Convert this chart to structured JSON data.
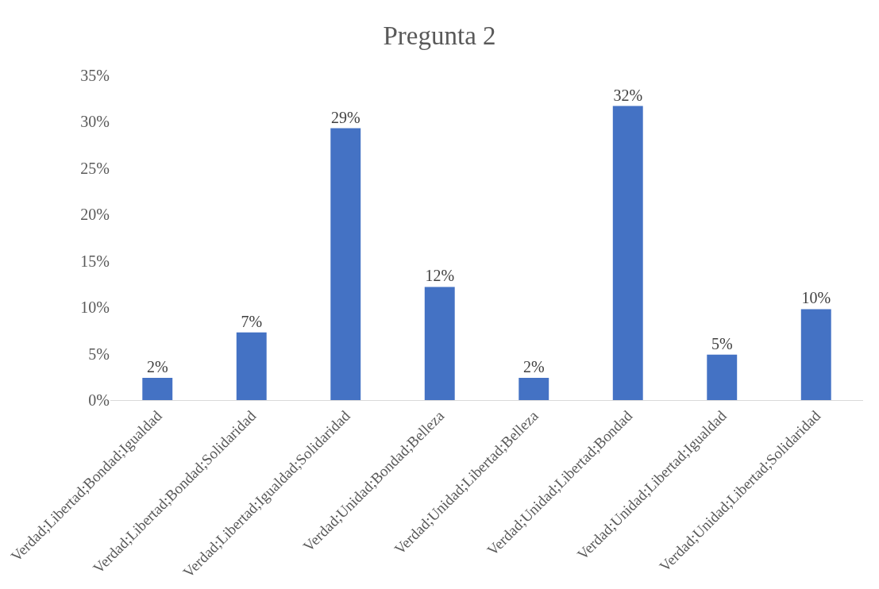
{
  "chart_data": {
    "type": "bar",
    "title": "Pregunta 2",
    "categories": [
      "Verdad;Libertad;Bondad;Igualdad",
      "Verdad;Libertad;Bondad;Solidaridad",
      "Verdad;Libertad;Igualdad;Solidaridad",
      "Verdad;Unidad;Bondad;Belleza",
      "Verdad;Unidad;Libertad;Belleza",
      "Verdad;Unidad;Libertad;Bondad",
      "Verdad;Unidad;Libertad;Igualdad",
      "Verdad;Unidad;Libertad;Solidaridad"
    ],
    "values": [
      2.4,
      7.3,
      29.3,
      12.2,
      2.4,
      31.7,
      4.9,
      9.8
    ],
    "value_labels": [
      "2%",
      "7%",
      "29%",
      "12%",
      "2%",
      "32%",
      "5%",
      "10%"
    ],
    "color": "#4472c4",
    "ylim": [
      0,
      35
    ],
    "yticks": [
      {
        "value": 0,
        "label": "0%"
      },
      {
        "value": 5,
        "label": "5%"
      },
      {
        "value": 10,
        "label": "10%"
      },
      {
        "value": 15,
        "label": "15%"
      },
      {
        "value": 20,
        "label": "20%"
      },
      {
        "value": 25,
        "label": "25%"
      },
      {
        "value": 30,
        "label": "30%"
      },
      {
        "value": 35,
        "label": "35%"
      }
    ],
    "grid": false
  }
}
